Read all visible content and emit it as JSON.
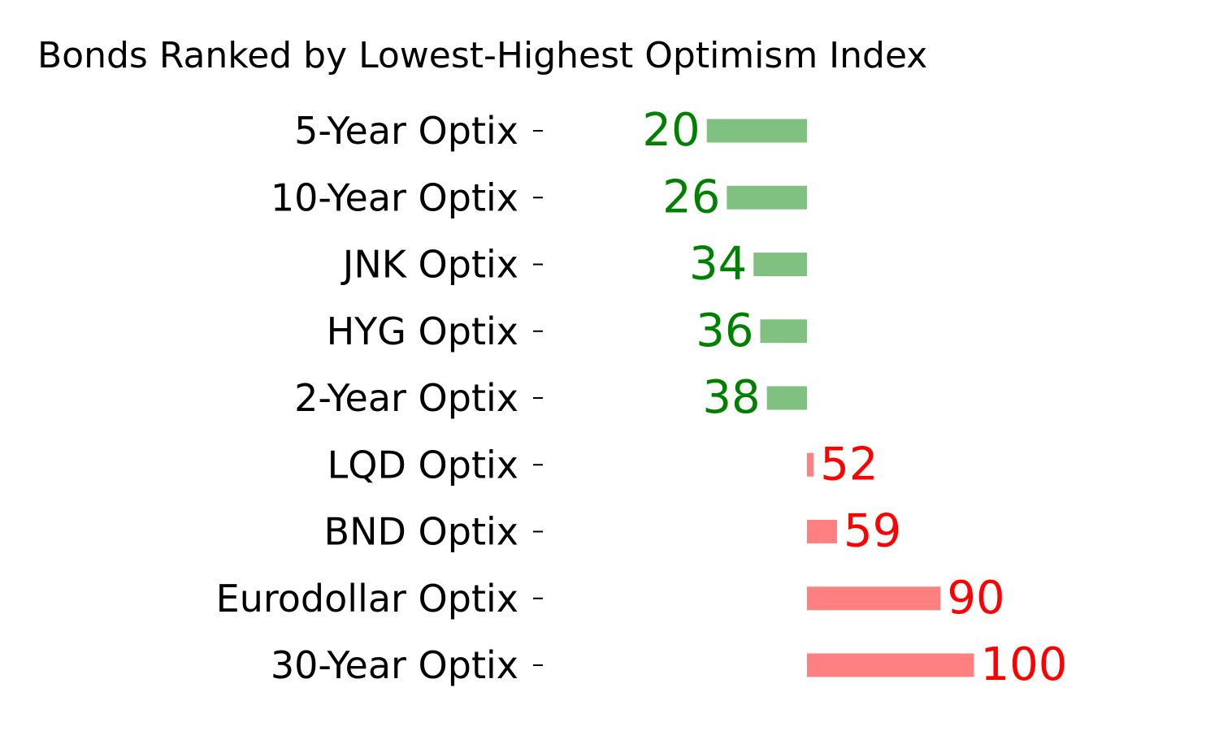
{
  "chart_data": {
    "type": "bar",
    "orientation": "horizontal",
    "title": "Bonds Ranked by Lowest-Highest Optimism Index",
    "xlabel": "",
    "ylabel": "",
    "baseline": 50,
    "xlim": [
      20,
      100
    ],
    "grid": false,
    "legend": "none",
    "categories": [
      "5-Year Optix",
      "10-Year Optix",
      "JNK Optix",
      "HYG Optix",
      "2-Year Optix",
      "LQD Optix",
      "BND Optix",
      "Eurodollar Optix",
      "30-Year Optix"
    ],
    "values": [
      20,
      26,
      34,
      36,
      38,
      52,
      59,
      90,
      100
    ],
    "value_labels": [
      "20",
      "26",
      "34",
      "36",
      "38",
      "52",
      "59",
      "90",
      "100"
    ],
    "colors": {
      "below_bar": "#80c080",
      "below_text": "#008000",
      "above_bar": "#ff8080",
      "above_text": "#ff0000"
    }
  }
}
